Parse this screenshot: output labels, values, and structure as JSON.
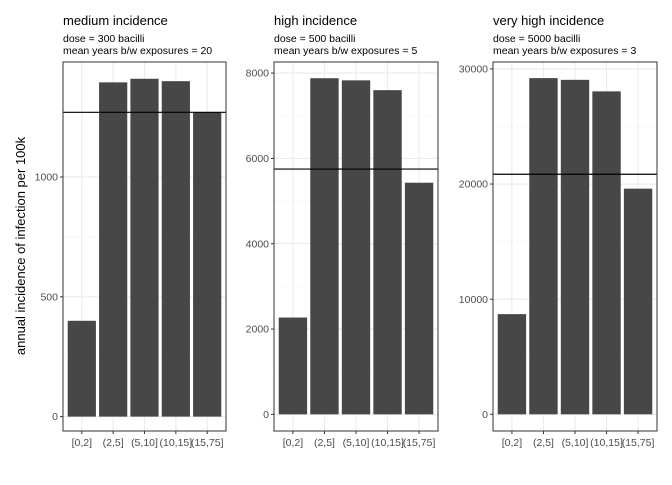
{
  "chart_data": {
    "type": "bar",
    "ylabel": "annual incidence of infection per 100k",
    "xlabel": "",
    "grid": true,
    "legend": "none",
    "colors": {
      "bar": "#474747",
      "panel_border": "#333333",
      "grid_major": "#ebebeb",
      "grid_minor": "#f5f5f5",
      "hline": "#000000"
    },
    "panels": [
      {
        "title": "medium incidence",
        "subtitle_lines": [
          "dose = 300 bacilli",
          "mean years b/w exposures = 20"
        ],
        "categories": [
          "[0,2]",
          "(2,5]",
          "(5,10]",
          "(10,15]",
          "(15,75]"
        ],
        "values": [
          400,
          1395,
          1410,
          1400,
          1270
        ],
        "reference_line": 1270,
        "ylim": [
          -60,
          1480
        ],
        "yticks": [
          0,
          500,
          1000
        ]
      },
      {
        "title": "high incidence",
        "subtitle_lines": [
          "dose = 500 bacilli",
          "mean years b/w exposures = 5"
        ],
        "categories": [
          "[0,2]",
          "(2,5]",
          "(5,10]",
          "(10,15]",
          "(15,75]"
        ],
        "values": [
          2270,
          7880,
          7830,
          7600,
          5430
        ],
        "reference_line": 5750,
        "ylim": [
          -390,
          8260
        ],
        "yticks": [
          0,
          2000,
          4000,
          6000,
          8000
        ]
      },
      {
        "title": "very high incidence",
        "subtitle_lines": [
          "dose = 5000 bacilli",
          "mean years b/w exposures = 3"
        ],
        "categories": [
          "[0,2]",
          "(2,5]",
          "(5,10]",
          "(10,15]",
          "(15,75]"
        ],
        "values": [
          8700,
          29200,
          29050,
          28050,
          19600
        ],
        "reference_line": 20850,
        "ylim": [
          -1450,
          30600
        ],
        "yticks": [
          0,
          10000,
          20000,
          30000
        ]
      }
    ]
  }
}
